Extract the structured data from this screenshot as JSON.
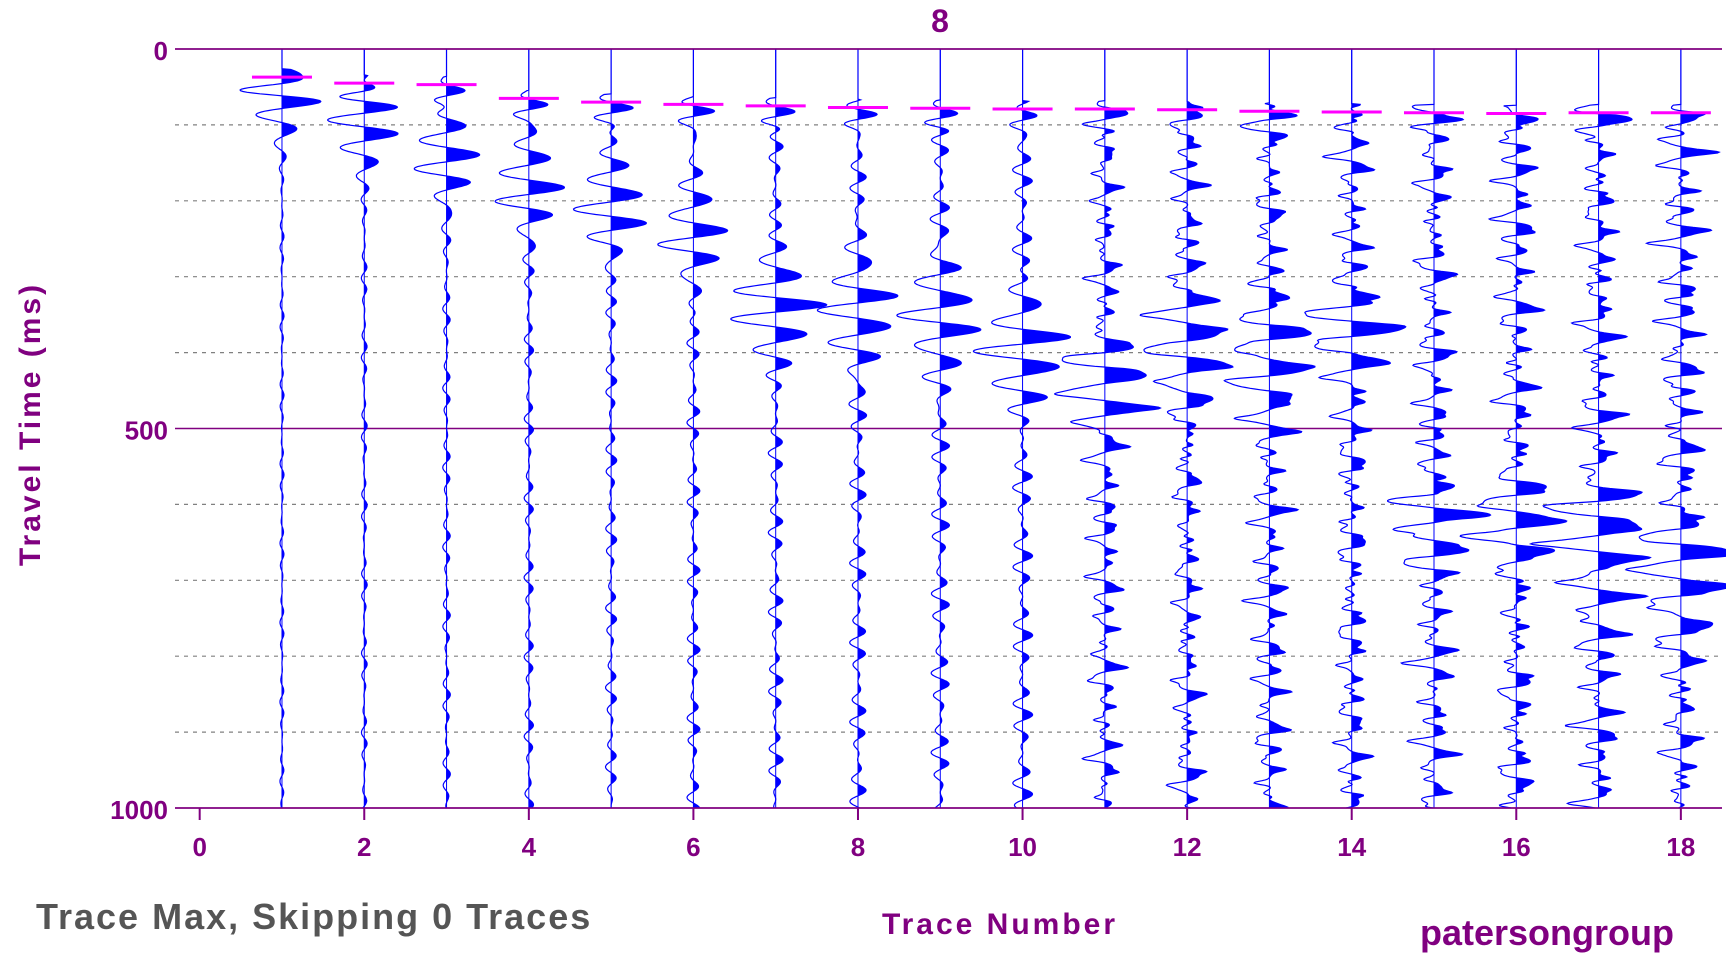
{
  "chart_data": {
    "type": "line",
    "title": "8",
    "xlabel": "Trace Number",
    "ylabel": "Travel Time (ms)",
    "xlim": [
      -0.3,
      18.5
    ],
    "ylim": [
      0,
      1000
    ],
    "y_inverted": true,
    "x_ticks": [
      0,
      2,
      4,
      6,
      8,
      10,
      12,
      14,
      16,
      18
    ],
    "y_tick_labels": [
      0,
      500,
      1000
    ],
    "y_minor_grid": [
      100,
      200,
      300,
      400,
      600,
      700,
      800,
      900
    ],
    "grid": true,
    "traces": [
      1,
      2,
      3,
      4,
      5,
      6,
      7,
      8,
      9,
      10,
      11,
      12,
      13,
      14,
      15,
      16,
      17,
      18
    ],
    "first_break_picks_ms": [
      37,
      45,
      47,
      65,
      70,
      73,
      75,
      77,
      78,
      79,
      79,
      80,
      82,
      83,
      84,
      85,
      84,
      84
    ],
    "wavelet_center_ms": [
      60,
      100,
      140,
      180,
      210,
      250,
      340,
      345,
      350,
      390,
      450,
      390,
      400,
      370,
      620,
      640,
      650,
      700
    ],
    "colors": {
      "axis": "#800080",
      "trace": "#0000ff",
      "pick": "#ff00ff",
      "grid": "#808080"
    }
  },
  "footer": {
    "status": "Trace Max, Skipping 0 Traces",
    "credit": "patersongroup"
  }
}
